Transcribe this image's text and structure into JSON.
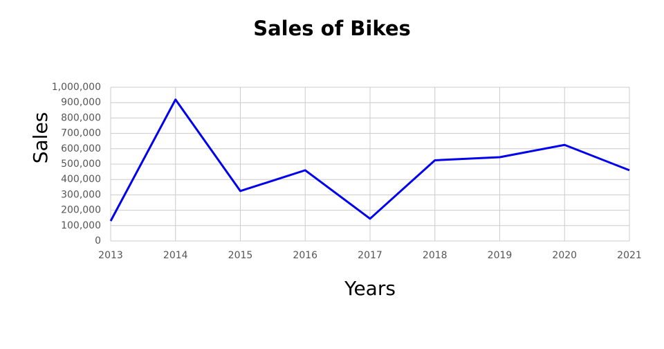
{
  "chart_data": {
    "type": "line",
    "title": "Sales of Bikes",
    "x_label": "Years",
    "y_label": "Sales",
    "categories": [
      "2013",
      "2014",
      "2015",
      "2016",
      "2017",
      "2018",
      "2019",
      "2020",
      "2021"
    ],
    "series": [
      {
        "name": "Sales",
        "color": "#0000ee",
        "values": [
          130000,
          920000,
          325000,
          460000,
          145000,
          525000,
          545000,
          625000,
          460000
        ]
      }
    ],
    "ylim": [
      0,
      1000000
    ],
    "yticks": [
      0,
      {
        "value": 100000,
        "label": "100,000"
      },
      {
        "value": 200000,
        "label": "200,000"
      },
      {
        "value": 300000,
        "label": "300,000"
      },
      {
        "value": 400000,
        "label": "400,000"
      },
      {
        "value": 500000,
        "label": "500,000"
      },
      {
        "value": 600000,
        "label": "600,000"
      },
      {
        "value": 700000,
        "label": "700,000"
      },
      {
        "value": 800000,
        "label": "800,000"
      },
      {
        "value": 900000,
        "label": "900,000"
      },
      {
        "value": 1000000,
        "label": "1,000,000"
      }
    ],
    "grid": true
  }
}
